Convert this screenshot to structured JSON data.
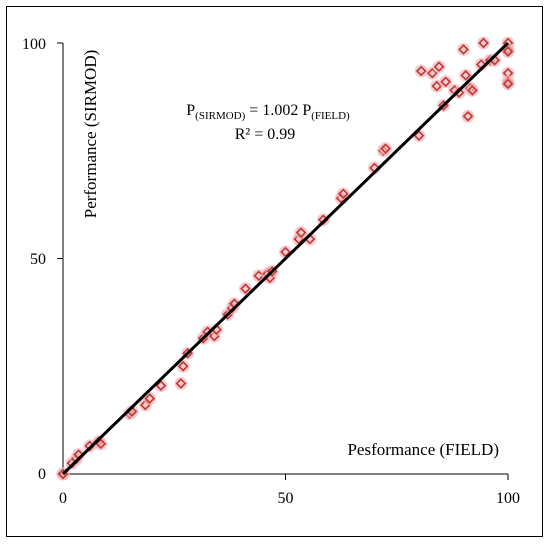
{
  "chart_data": {
    "type": "scatter",
    "title": "",
    "xlabel": "Pesformance (FIELD)",
    "ylabel": "Performance (SIRMOD)",
    "xlim": [
      0,
      100
    ],
    "ylim": [
      0,
      100
    ],
    "x_ticks": [
      "0",
      "50",
      "100"
    ],
    "y_ticks": [
      "0",
      "50",
      "100"
    ],
    "grid": false,
    "legend": "none",
    "colors": {
      "points": "#c0392b",
      "point_glow": "#f4b6c2",
      "trendline": "#000000"
    },
    "annotation": {
      "equation_main": "P",
      "equation_sub1": "(SIRMOD)",
      "equation_mid": " = 1.002 P",
      "equation_sub2": "(FIELD)",
      "r2": "R² = 0.99"
    },
    "trendline": {
      "slope": 1.002,
      "intercept": 0
    },
    "series": [
      {
        "x": [
          0,
          0,
          2,
          3,
          3.5,
          6,
          8,
          8.5,
          15,
          15.5,
          18.5,
          19.5,
          22,
          26.5,
          27,
          28,
          31.5,
          32.5,
          34,
          34.5,
          37,
          38,
          38.5,
          41,
          44,
          46,
          46.5,
          47,
          50,
          53,
          53.5,
          55.5,
          58.5,
          62.5,
          63,
          70,
          72,
          72.5,
          80,
          80.5,
          83,
          84,
          84.5,
          85.5,
          86,
          88,
          89,
          90,
          90.5,
          91,
          91.5,
          92,
          94,
          94.5,
          96,
          97,
          100,
          100,
          100,
          100,
          100,
          100
        ],
        "y": [
          0,
          0,
          2.5,
          3.5,
          4.5,
          6.5,
          7.5,
          7,
          14,
          14.5,
          16,
          17.5,
          20.5,
          21,
          25,
          28,
          31.5,
          33,
          32,
          33.5,
          37,
          38.5,
          39.5,
          43,
          46,
          46.5,
          45.5,
          47,
          51.5,
          54.5,
          56,
          54.5,
          59,
          64,
          65,
          71,
          75,
          75.5,
          78.5,
          93.5,
          93,
          90,
          94.5,
          85.5,
          91,
          89,
          88.5,
          98.5,
          92.5,
          83,
          89.5,
          89,
          95,
          100,
          96,
          96,
          100,
          98.5,
          98,
          93,
          91,
          90.5
        ]
      }
    ]
  }
}
